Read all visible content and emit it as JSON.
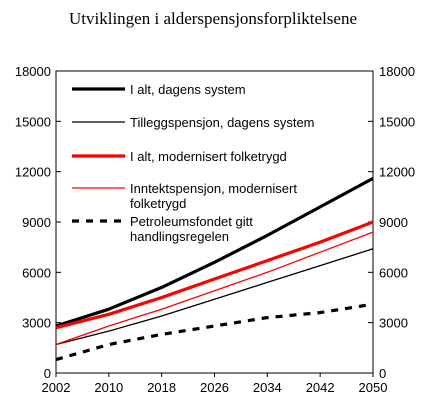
{
  "chart_data": {
    "type": "line",
    "title": "Utviklingen i alderspensjonsforpliktelsene",
    "xlabel": "",
    "ylabel": "",
    "xlim": [
      2002,
      2050
    ],
    "ylim": [
      0,
      18000
    ],
    "x_ticks": [
      "2002",
      "2010",
      "2018",
      "2026",
      "2034",
      "2042",
      "2050"
    ],
    "y_ticks": [
      "0",
      "3000",
      "6000",
      "9000",
      "12000",
      "15000",
      "18000"
    ],
    "y_ticks_right": [
      "0",
      "3000",
      "6000",
      "9000",
      "12000",
      "15000",
      "18000"
    ],
    "grid": false,
    "legend_position": "top-left",
    "series": [
      {
        "name": "I alt, dagens system",
        "color": "#000000",
        "style": "solid-thick",
        "points": [
          [
            2002,
            2800
          ],
          [
            2010,
            3800
          ],
          [
            2018,
            5100
          ],
          [
            2026,
            6600
          ],
          [
            2034,
            8200
          ],
          [
            2042,
            9900
          ],
          [
            2050,
            11600
          ]
        ]
      },
      {
        "name": "Tilleggspensjon, dagens system",
        "color": "#000000",
        "style": "solid-thin",
        "points": [
          [
            2002,
            1700
          ],
          [
            2010,
            2500
          ],
          [
            2018,
            3400
          ],
          [
            2026,
            4400
          ],
          [
            2034,
            5400
          ],
          [
            2042,
            6400
          ],
          [
            2050,
            7400
          ]
        ]
      },
      {
        "name": "I alt, modernisert  folketrygd",
        "color": "#ff0000",
        "style": "solid-thick",
        "points": [
          [
            2002,
            2700
          ],
          [
            2010,
            3500
          ],
          [
            2018,
            4500
          ],
          [
            2026,
            5600
          ],
          [
            2034,
            6700
          ],
          [
            2042,
            7800
          ],
          [
            2050,
            9000
          ]
        ]
      },
      {
        "name": "Inntektspensjon, modernisert folketrygd",
        "lines": [
          "Inntektspensjon, modernisert",
          "folketrygd"
        ],
        "color": "#ff0000",
        "style": "solid-thin",
        "points": [
          [
            2002,
            1700
          ],
          [
            2010,
            2800
          ],
          [
            2018,
            3800
          ],
          [
            2026,
            4900
          ],
          [
            2034,
            6000
          ],
          [
            2042,
            7200
          ],
          [
            2050,
            8400
          ]
        ]
      },
      {
        "name": "Petroleumsfondet gitt handlingsregelen",
        "lines": [
          "Petroleumsfondet gitt",
          "handlingsregelen"
        ],
        "color": "#000000",
        "style": "dashed-thick",
        "points": [
          [
            2002,
            800
          ],
          [
            2010,
            1700
          ],
          [
            2018,
            2300
          ],
          [
            2026,
            2800
          ],
          [
            2034,
            3300
          ],
          [
            2042,
            3600
          ],
          [
            2050,
            4100
          ]
        ]
      }
    ]
  }
}
